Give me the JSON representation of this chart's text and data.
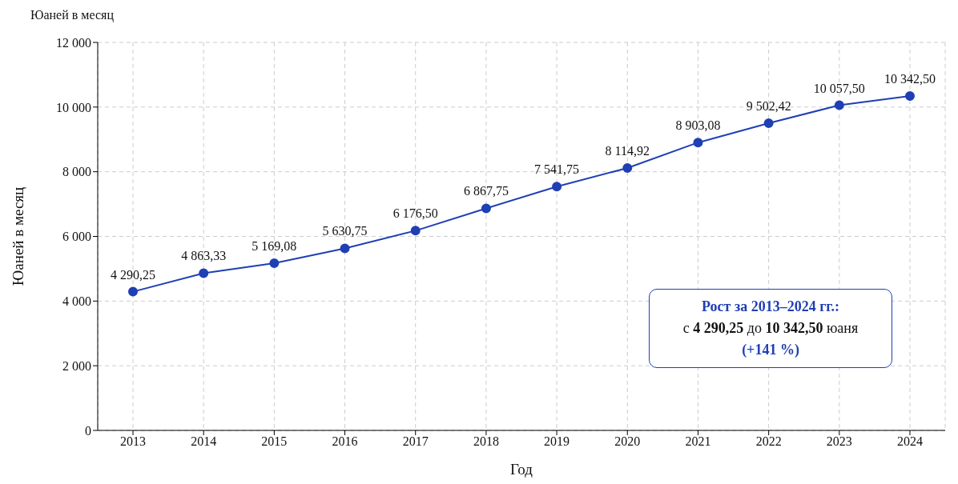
{
  "chart_data": {
    "type": "line",
    "title": "Юаней в месяц",
    "xlabel": "Год",
    "ylabel": "Юаней в месяц",
    "categories": [
      "2013",
      "2014",
      "2015",
      "2016",
      "2017",
      "2018",
      "2019",
      "2020",
      "2021",
      "2022",
      "2023",
      "2024"
    ],
    "series": [
      {
        "color": "#1f3fb5",
        "values": [
          4290.25,
          4863.33,
          5169.08,
          5630.75,
          6176.5,
          6867.75,
          7541.75,
          8114.92,
          8903.08,
          9502.42,
          10057.5,
          10342.5
        ],
        "value_labels": [
          "4 290,25",
          "4 863,33",
          "5 169,08",
          "5 630,75",
          "6 176,50",
          "6 867,75",
          "7 541,75",
          "8 114,92",
          "8 903,08",
          "9 502,42",
          "10 057,50",
          "10 342,50"
        ]
      }
    ],
    "ylim": [
      0,
      12000
    ],
    "yticks": [
      0,
      {
        "value": 2000,
        "label": "2 000"
      },
      {
        "value": 4000,
        "label": "4 000"
      },
      {
        "value": 6000,
        "label": "6 000"
      },
      {
        "value": 8000,
        "label": "8 000"
      },
      {
        "value": 10000,
        "label": "10 000"
      },
      {
        "value": 12000,
        "label": "12 000"
      }
    ],
    "grid": true,
    "marker": "circle",
    "line_style": "solid",
    "annotations": [
      "Рост за 2013–2024 гг.:",
      "с 4 290,25 до 10 342,50 юаня",
      "(+141 %)"
    ]
  }
}
